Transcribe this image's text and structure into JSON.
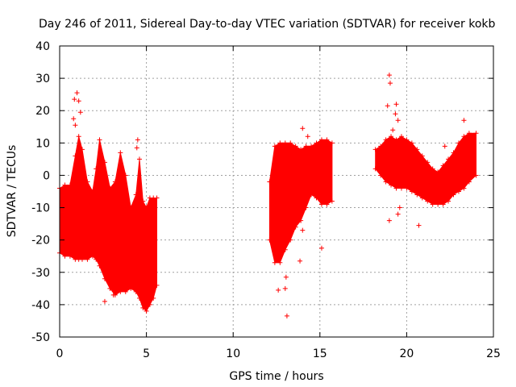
{
  "chart_data": {
    "type": "scatter",
    "title": "Day 246 of 2011, Sidereal Day-to-day VTEC variation (SDTVAR) for receiver kokb",
    "xlabel": "GPS time / hours",
    "ylabel": "SDTVAR / TECUs",
    "xlim": [
      0,
      25
    ],
    "ylim": [
      -50,
      40
    ],
    "xticks": [
      0,
      5,
      10,
      15,
      20,
      25
    ],
    "yticks": [
      -50,
      -40,
      -30,
      -20,
      -10,
      0,
      10,
      20,
      30,
      40
    ],
    "grid": true,
    "marker": "+",
    "color": "#ff0000",
    "envelopes": [
      {
        "name": "segment-1-0-to-5.6h",
        "x": [
          0.0,
          0.3,
          0.6,
          0.9,
          1.1,
          1.3,
          1.6,
          1.9,
          2.1,
          2.3,
          2.6,
          2.9,
          3.2,
          3.5,
          3.8,
          4.1,
          4.4,
          4.6,
          4.8,
          5.0,
          5.2,
          5.4,
          5.6
        ],
        "upper": [
          -4,
          -3,
          -3,
          6,
          12,
          8,
          -2,
          -5,
          2,
          11,
          4,
          -4,
          -2,
          7,
          0,
          -10,
          -6,
          5,
          -8,
          -10,
          -7,
          -7,
          -7
        ],
        "lower": [
          -24,
          -25,
          -25,
          -26,
          -26,
          -26,
          -26,
          -25,
          -26,
          -28,
          -32,
          -35,
          -37,
          -36,
          -36,
          -35,
          -36,
          -38,
          -41,
          -42,
          -40,
          -38,
          -34
        ]
      },
      {
        "name": "segment-2-12.1-to-15.7h",
        "x": [
          12.1,
          12.4,
          12.7,
          13.0,
          13.3,
          13.6,
          13.9,
          14.2,
          14.5,
          14.8,
          15.1,
          15.4,
          15.7
        ],
        "upper": [
          -2,
          9,
          10,
          10,
          10,
          9,
          8,
          9,
          9,
          10,
          11,
          11,
          10
        ],
        "lower": [
          -20,
          -27,
          -27,
          -23,
          -20,
          -16,
          -14,
          -10,
          -6,
          -7,
          -9,
          -9,
          -8
        ]
      },
      {
        "name": "segment-3-18.2-to-24h",
        "x": [
          18.2,
          18.5,
          18.8,
          19.1,
          19.4,
          19.7,
          20.0,
          20.3,
          20.6,
          20.9,
          21.2,
          21.5,
          21.8,
          22.1,
          22.4,
          22.7,
          23.0,
          23.3,
          23.6,
          24.0
        ],
        "upper": [
          8,
          9,
          11,
          12,
          11,
          12,
          11,
          10,
          8,
          6,
          4,
          2,
          1,
          3,
          5,
          7,
          10,
          12,
          13,
          13
        ],
        "lower": [
          2,
          0,
          -2,
          -3,
          -4,
          -4,
          -4,
          -5,
          -6,
          -7,
          -8,
          -9,
          -9,
          -9,
          -8,
          -6,
          -5,
          -4,
          -2,
          0
        ]
      }
    ],
    "outliers": [
      {
        "x": 0.85,
        "y": 23.5
      },
      {
        "x": 1.0,
        "y": 25.5
      },
      {
        "x": 1.1,
        "y": 23
      },
      {
        "x": 0.8,
        "y": 17.5
      },
      {
        "x": 0.9,
        "y": 15.5
      },
      {
        "x": 1.2,
        "y": 19.5
      },
      {
        "x": 2.6,
        "y": -39
      },
      {
        "x": 4.5,
        "y": 11
      },
      {
        "x": 4.45,
        "y": 8.5
      },
      {
        "x": 3.1,
        "y": -37
      },
      {
        "x": 13.1,
        "y": -43.5
      },
      {
        "x": 12.6,
        "y": -35.5
      },
      {
        "x": 13.0,
        "y": -35
      },
      {
        "x": 13.05,
        "y": -31.5
      },
      {
        "x": 14.0,
        "y": 14.5
      },
      {
        "x": 13.85,
        "y": -26.5
      },
      {
        "x": 14.0,
        "y": -17
      },
      {
        "x": 15.1,
        "y": -22.5
      },
      {
        "x": 14.3,
        "y": 12
      },
      {
        "x": 19.0,
        "y": 31
      },
      {
        "x": 19.05,
        "y": 28.5
      },
      {
        "x": 19.4,
        "y": 22
      },
      {
        "x": 19.35,
        "y": 19
      },
      {
        "x": 19.5,
        "y": 17
      },
      {
        "x": 19.2,
        "y": 14
      },
      {
        "x": 19.5,
        "y": -12
      },
      {
        "x": 19.0,
        "y": -14
      },
      {
        "x": 19.6,
        "y": -10
      },
      {
        "x": 20.7,
        "y": -15.5
      },
      {
        "x": 22.2,
        "y": 9
      },
      {
        "x": 23.3,
        "y": 17
      },
      {
        "x": 18.9,
        "y": 21.5
      }
    ]
  }
}
